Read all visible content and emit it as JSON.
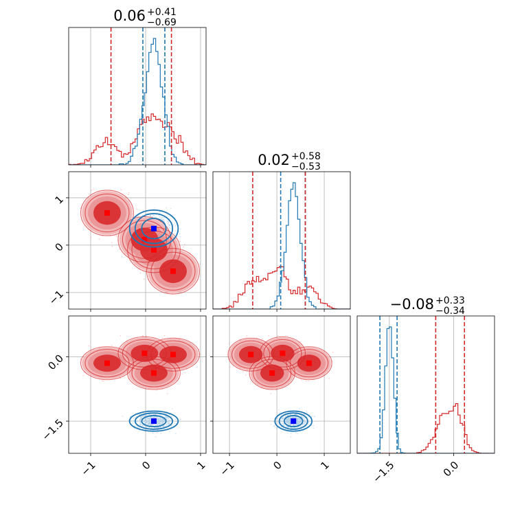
{
  "colors": {
    "blue": "#1f77b4",
    "red": "#d62728",
    "pure_blue": "#0000ff",
    "pure_red": "#ff0000",
    "grid": "#b0b0b0"
  },
  "chart_data": {
    "type": "corner",
    "parameters": 3,
    "titles": [
      {
        "median": "0.06",
        "upper": "+0.41",
        "lower": "−0.69"
      },
      {
        "median": "0.02",
        "upper": "+0.58",
        "lower": "−0.53"
      },
      {
        "median": "−0.08",
        "upper": "+0.33",
        "lower": "−0.34"
      }
    ],
    "ranges": [
      [
        -1.4,
        1.1
      ],
      [
        -1.35,
        1.55
      ],
      [
        -2.25,
        0.95
      ]
    ],
    "ticks": [
      {
        "values": [
          -1,
          0,
          1
        ],
        "labels": [
          "−1",
          "0",
          "1"
        ]
      },
      {
        "values": [
          -1,
          0,
          1
        ],
        "labels": [
          "−1",
          "0",
          "1"
        ]
      },
      {
        "values": [
          -1.5,
          0.0
        ],
        "labels": [
          "−1.5",
          "0.0"
        ]
      }
    ],
    "grid": true,
    "series": [
      {
        "color": "#1f77b4",
        "style": "contour-lines",
        "marker_color": "#0000ff",
        "means": [
          0.15,
          0.35,
          -1.5
        ],
        "quantiles": [
          [
            -0.05,
            0.15,
            0.35
          ],
          [
            0.08,
            0.35,
            0.6
          ],
          [
            -1.72,
            -1.55,
            -1.32
          ]
        ]
      },
      {
        "color": "#d62728",
        "style": "filled-contours",
        "marker_color": "#ff0000",
        "modes": [
          [
            -0.7,
            0.68,
            -0.15
          ],
          [
            -0.02,
            0.12,
            0.08
          ],
          [
            0.15,
            -0.1,
            -0.38
          ],
          [
            0.5,
            -0.55,
            0.05
          ]
        ],
        "quantiles": [
          [
            -0.63,
            0.06,
            0.47
          ],
          [
            -0.51,
            0.02,
            0.6
          ],
          [
            -0.42,
            -0.08,
            0.25
          ]
        ]
      }
    ]
  }
}
